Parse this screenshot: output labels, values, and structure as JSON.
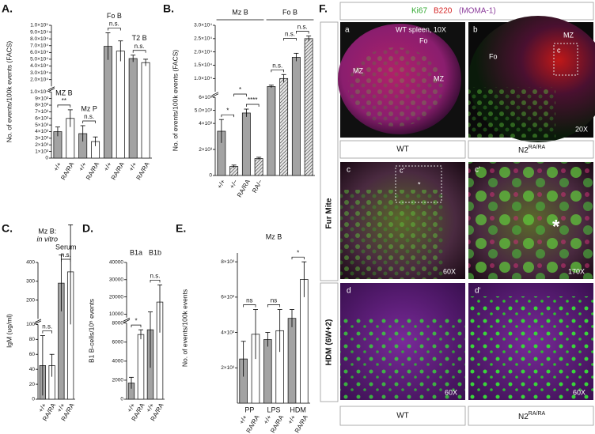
{
  "chart_data": [
    {
      "type": "bar",
      "panel_label": "A.",
      "ylabel": "No. of events/100k events (FACS)",
      "categories": [
        "+/+",
        "RA/RA",
        "+/+",
        "RA/RA",
        "+/+",
        "RA/RA",
        "+/+",
        "RA/RA"
      ],
      "group_labels": [
        "MZ B",
        "Mz P",
        "Fo B",
        "T2 B"
      ],
      "values": [
        4000,
        6000,
        3700,
        2500,
        69000,
        62000,
        51000,
        45000
      ],
      "errors": [
        700,
        1300,
        1200,
        700,
        20000,
        15000,
        5000,
        5000
      ],
      "colors": [
        "#a3a3a3",
        "#ffffff",
        "#a3a3a3",
        "#ffffff",
        "#a3a3a3",
        "#ffffff",
        "#a3a3a3",
        "#ffffff"
      ],
      "annotations": [
        "**",
        "n.s.",
        "n.s.",
        "n.s."
      ],
      "ysegments": [
        {
          "ylim": [
            0,
            10000
          ],
          "yticks": [
            0,
            {
              "value": 1000,
              "label": "1×10³"
            },
            {
              "value": 2000,
              "label": "2×10³"
            },
            {
              "value": 3000,
              "label": "3×10³"
            },
            {
              "value": 4000,
              "label": "4×10³"
            },
            {
              "value": 5000,
              "label": "5×10³"
            },
            {
              "value": 6000,
              "label": "6×10³"
            },
            {
              "value": 7000,
              "label": "7×10³"
            },
            {
              "value": 8000,
              "label": "8×10³"
            },
            {
              "value": 9000,
              "label": "9×10³"
            }
          ]
        },
        {
          "ylim": [
            10000,
            100000
          ],
          "yticks": [
            {
              "value": 10000,
              "label": "1.0×10⁴"
            },
            {
              "value": 20000,
              "label": "2.0×10⁴"
            },
            {
              "value": 30000,
              "label": "3.0×10⁴"
            },
            {
              "value": 40000,
              "label": "4.0×10⁴"
            },
            {
              "value": 50000,
              "label": "5.0×10⁴"
            },
            {
              "value": 60000,
              "label": "6.0×10⁴"
            },
            {
              "value": 70000,
              "label": "7.0×10⁴"
            },
            {
              "value": 80000,
              "label": "8.0×10⁴"
            },
            {
              "value": 90000,
              "label": "9.0×10⁴"
            },
            {
              "value": 100000,
              "label": "1.0×10⁵"
            }
          ]
        }
      ]
    },
    {
      "type": "bar",
      "panel_label": "B.",
      "ylabel": "No. of events/100k events (FACS)",
      "categories": [
        "+/+",
        "+/−",
        "RA/RA",
        "RA/−",
        null,
        null,
        null,
        null
      ],
      "group_labels": [
        "Mz B",
        "Fo B"
      ],
      "values": [
        3400,
        700,
        4800,
        1300,
        7000,
        10000,
        18000,
        25000
      ],
      "errors": [
        900,
        100,
        300,
        100,
        500,
        1500,
        1500,
        1000
      ],
      "colors": [
        "#a3a3a3",
        "#d9d9d9",
        "#a3a3a3",
        "#eeeeee",
        "#a3a3a3",
        "#d9d9d9",
        "#a3a3a3",
        "#eeeeee"
      ],
      "hatch": [
        false,
        true,
        false,
        true,
        false,
        true,
        false,
        true
      ],
      "annotations": [
        "*",
        "****",
        "*",
        "n.s.",
        "n.s.",
        "n.s."
      ],
      "ysegments": [
        {
          "ylim": [
            0,
            6000
          ],
          "yticks": [
            0,
            {
              "value": 2000,
              "label": "2×10³"
            },
            {
              "value": 4000,
              "label": "4×10³"
            },
            {
              "value": 6000,
              "label": "6×10³"
            }
          ]
        },
        {
          "ylim": [
            5000,
            30000
          ],
          "yticks": [
            {
              "value": 5000,
              "label": "5.0×10³"
            },
            {
              "value": 10000,
              "label": "1.0×10⁴"
            },
            {
              "value": 15000,
              "label": "1.5×10⁴"
            },
            {
              "value": 20000,
              "label": "2.0×10⁴"
            },
            {
              "value": 25000,
              "label": "2.5×10⁴"
            },
            {
              "value": 30000,
              "label": "3.0×10⁴"
            }
          ]
        }
      ]
    },
    {
      "type": "bar",
      "panel_label": "C.",
      "ylabel": "IgM (ug/ml)",
      "categories": [
        "+/+",
        "RA/RA",
        "+/+",
        "RA/RA"
      ],
      "group_labels": [
        [
          "Mz B:",
          "in vitro"
        ],
        "Serum"
      ],
      "values": [
        45,
        45,
        290,
        350
      ],
      "errors": [
        40,
        15,
        150,
        250
      ],
      "colors": [
        "#a3a3a3",
        "#ffffff",
        "#a3a3a3",
        "#ffffff"
      ],
      "annotations": [
        "n.s.",
        "n.s."
      ],
      "ysegments": [
        {
          "ylim": [
            0,
            100
          ],
          "yticks": [
            0,
            20,
            40,
            60,
            80,
            100
          ]
        },
        {
          "ylim": [
            100,
            400
          ],
          "yticks": [
            200,
            300,
            400
          ]
        }
      ]
    },
    {
      "type": "bar",
      "panel_label": "D.",
      "ylabel": "B1 B-cells/10⁵ events",
      "categories": [
        "+/+",
        "RA/RA",
        "+/+",
        "RA/RA"
      ],
      "group_labels": [
        "B1a",
        "B1b"
      ],
      "values": [
        1700,
        6800,
        7300,
        17000
      ],
      "errors": [
        600,
        500,
        4000,
        10000
      ],
      "colors": [
        "#a3a3a3",
        "#ffffff",
        "#a3a3a3",
        "#ffffff"
      ],
      "annotations": [
        "*",
        "n.s."
      ],
      "ysegments": [
        {
          "ylim": [
            0,
            8000
          ],
          "yticks": [
            0,
            2000,
            4000,
            6000,
            8000
          ]
        },
        {
          "ylim": [
            8000,
            40000
          ],
          "yticks": [
            10000,
            20000,
            30000,
            40000
          ]
        }
      ]
    },
    {
      "type": "bar",
      "panel_label": "E.",
      "title": "Mz B",
      "ylabel": "No. of events/100k events",
      "categories": [
        "+/+",
        "RA/RA",
        "+/+",
        "RA/RA",
        "+/+",
        "RA/RA"
      ],
      "group_labels": [
        "PP",
        "LPS",
        "HDM"
      ],
      "values": [
        2500,
        3900,
        3600,
        4100,
        4800,
        7000
      ],
      "errors": [
        1000,
        1400,
        400,
        1200,
        500,
        1000
      ],
      "colors": [
        "#a3a3a3",
        "#ffffff",
        "#a3a3a3",
        "#ffffff",
        "#a3a3a3",
        "#ffffff"
      ],
      "annotations": [
        "ns",
        "ns",
        "*"
      ],
      "ysegments": [
        {
          "ylim": [
            0,
            8500
          ],
          "yticks": [
            {
              "value": 2000,
              "label": "2×10³"
            },
            {
              "value": 4000,
              "label": "4×10³"
            },
            {
              "value": 6000,
              "label": "6×10³"
            },
            {
              "value": 8000,
              "label": "8×10³"
            }
          ]
        }
      ]
    }
  ],
  "figure_f": {
    "panel_label": "F.",
    "stain": [
      "Ki67",
      "B220",
      "(MOMA-1)"
    ],
    "rows": [
      "Fur Mite",
      "HDM (6W+2)"
    ],
    "tiles": [
      {
        "letter": "a",
        "notes": [
          "WT spleen, 10X",
          "Fo",
          "MZ",
          "MZ"
        ]
      },
      {
        "letter": "b",
        "notes": [
          "MZ",
          "Fo",
          "c",
          "20X"
        ]
      },
      {
        "letter": "c",
        "notes": [
          "c'",
          "*",
          "60X"
        ]
      },
      {
        "letter": "c'",
        "notes": [
          "*",
          "170X"
        ]
      },
      {
        "letter": "d",
        "notes": [
          "60X"
        ]
      },
      {
        "letter": "d'",
        "notes": [
          "60X"
        ]
      }
    ],
    "captions": [
      "WT",
      {
        "base": "N2",
        "sup": "RA/RA"
      },
      "WT",
      {
        "base": "N2",
        "sup": "RA/RA"
      }
    ]
  }
}
